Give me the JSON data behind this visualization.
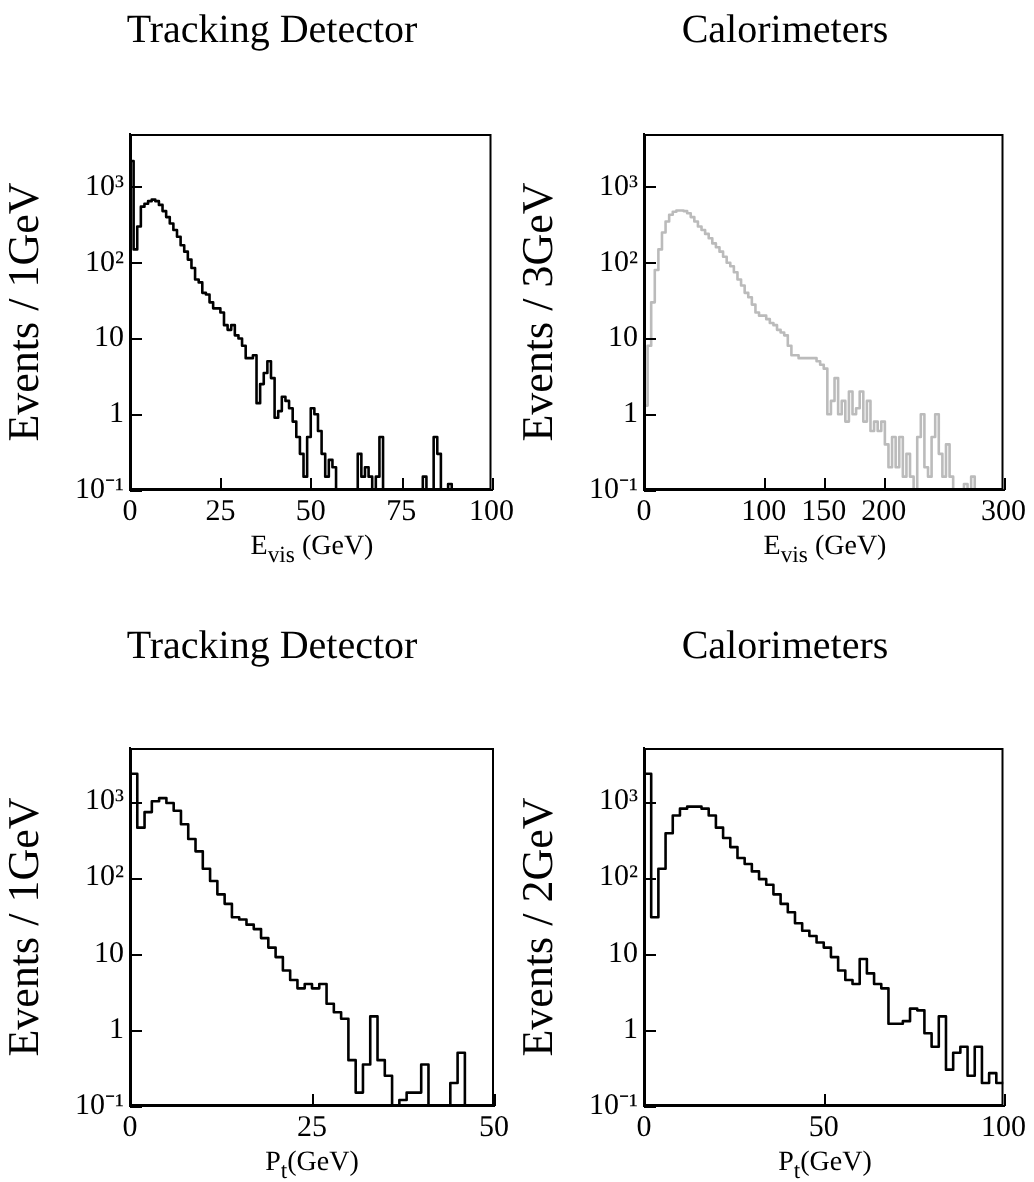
{
  "chart_data": [
    {
      "type": "histogram",
      "title": "Tracking Detector",
      "xlabel": "E$_{vis}$ (GeV)",
      "ylabel": "Events / 1GeV",
      "color": "#000000",
      "log": true,
      "xlim": [
        0,
        100
      ],
      "xticks": [
        0,
        25,
        50,
        75,
        100
      ],
      "ylim": [
        0.1,
        5000
      ],
      "yticks": [
        {
          "value": 0.1,
          "label": "10⁻¹"
        },
        {
          "value": 1,
          "label": "1"
        },
        {
          "value": 10,
          "label": "10"
        },
        {
          "value": 100,
          "label": "10²"
        },
        {
          "value": 1000,
          "label": "10³"
        }
      ],
      "bins": [
        0,
        1,
        2,
        3,
        4,
        5,
        6,
        7,
        8,
        9,
        10,
        11,
        12,
        13,
        14,
        15,
        16,
        17,
        18,
        19,
        20,
        21,
        22,
        23,
        24,
        25,
        26,
        27,
        28,
        29,
        30,
        31,
        32,
        33,
        34,
        35,
        36,
        37,
        38,
        39,
        40,
        41,
        42,
        43,
        44,
        45,
        46,
        47,
        48,
        49,
        50,
        51,
        52,
        53,
        54,
        55,
        56,
        57,
        58,
        59,
        60,
        61,
        62,
        63,
        64,
        65,
        66,
        67,
        68,
        69,
        70,
        71,
        72,
        73,
        74,
        75,
        76,
        77,
        78,
        79,
        80,
        81,
        82,
        83,
        84,
        85,
        86,
        87,
        88,
        89,
        90,
        91,
        92,
        93,
        94,
        95,
        96,
        97,
        98,
        99,
        100
      ],
      "values": [
        2200,
        150,
        300,
        550,
        600,
        650,
        680,
        650,
        580,
        480,
        400,
        330,
        270,
        220,
        170,
        140,
        110,
        85,
        60,
        55,
        40,
        38,
        30,
        25,
        25,
        22,
        15,
        13,
        15,
        11,
        10,
        8,
        5.5,
        5.5,
        6,
        1.4,
        2.5,
        3.5,
        5,
        3,
        0.9,
        1.1,
        1.7,
        1.5,
        1.2,
        0.8,
        0.5,
        0.3,
        0.15,
        0.5,
        1.2,
        1,
        0.6,
        0.3,
        0.15,
        0.25,
        0.2,
        null,
        null,
        null,
        null,
        null,
        null,
        0.3,
        0.15,
        0.2,
        0.15,
        null,
        0.15,
        0.5,
        null,
        null,
        null,
        null,
        null,
        null,
        null,
        null,
        null,
        null,
        null,
        0.15,
        null,
        null,
        0.5,
        0.3,
        null,
        null,
        0.12,
        null,
        null,
        null,
        null,
        null,
        null,
        null,
        null,
        null,
        null,
        null
      ]
    },
    {
      "type": "histogram",
      "title": "Calorimeters",
      "xlabel": "E$_{vis}$ (GeV)",
      "ylabel": "Events / 3GeV",
      "color": "#bbbbbb",
      "log": true,
      "xlim": [
        0,
        300
      ],
      "xticks": [
        0,
        100,
        150,
        200,
        300
      ],
      "ylim": [
        0.1,
        5000
      ],
      "yticks": [
        {
          "value": 0.1,
          "label": "10⁻¹"
        },
        {
          "value": 1,
          "label": "1"
        },
        {
          "value": 10,
          "label": "10"
        },
        {
          "value": 100,
          "label": "10²"
        },
        {
          "value": 1000,
          "label": "10³"
        }
      ],
      "bins": [
        0,
        3,
        6,
        9,
        12,
        15,
        18,
        21,
        24,
        27,
        30,
        33,
        36,
        39,
        42,
        45,
        48,
        51,
        54,
        57,
        60,
        63,
        66,
        69,
        72,
        75,
        78,
        81,
        84,
        87,
        90,
        93,
        96,
        99,
        102,
        105,
        108,
        111,
        114,
        117,
        120,
        123,
        126,
        129,
        132,
        135,
        138,
        141,
        144,
        147,
        150,
        153,
        156,
        159,
        162,
        165,
        168,
        171,
        174,
        177,
        180,
        183,
        186,
        189,
        192,
        195,
        198,
        201,
        204,
        207,
        210,
        213,
        216,
        219,
        222,
        225,
        228,
        231,
        234,
        237,
        240,
        243,
        246,
        249,
        252,
        255,
        258,
        261,
        264,
        267,
        270,
        273,
        276,
        279,
        282,
        285,
        288,
        291,
        294,
        297,
        300
      ],
      "values": [
        1.3,
        8,
        30,
        80,
        150,
        250,
        350,
        430,
        470,
        490,
        490,
        480,
        450,
        400,
        350,
        300,
        270,
        240,
        210,
        180,
        160,
        140,
        120,
        100,
        90,
        75,
        60,
        50,
        40,
        35,
        28,
        22,
        20,
        20,
        18,
        16,
        15,
        13,
        12,
        11,
        8,
        6,
        6,
        5.5,
        5.5,
        5.5,
        5.5,
        5.5,
        5,
        4.5,
        4,
        1,
        1.5,
        3,
        1,
        1.5,
        0.8,
        2,
        1,
        1.2,
        2,
        0.8,
        1.5,
        0.6,
        0.8,
        0.6,
        0.8,
        0.4,
        0.2,
        0.5,
        0.2,
        0.5,
        0.15,
        0.3,
        0.15,
        null,
        0.5,
        1,
        0.2,
        0.15,
        0.5,
        1,
        0.3,
        0.15,
        0.4,
        0.15,
        null,
        null,
        null,
        0.12,
        null,
        0.15,
        null,
        null,
        null,
        null,
        null,
        null,
        null,
        null
      ]
    },
    {
      "type": "histogram",
      "title": "Tracking Detector",
      "xlabel": "P$_{t}$(GeV)",
      "ylabel": "Events / 1GeV",
      "color": "#000000",
      "log": true,
      "xlim": [
        0,
        50
      ],
      "xticks": [
        0,
        25,
        50
      ],
      "ylim": [
        0.1,
        5000
      ],
      "yticks": [
        {
          "value": 0.1,
          "label": "10⁻¹"
        },
        {
          "value": 1,
          "label": "1"
        },
        {
          "value": 10,
          "label": "10"
        },
        {
          "value": 100,
          "label": "10²"
        },
        {
          "value": 1000,
          "label": "10³"
        }
      ],
      "bins": [
        0,
        1,
        2,
        3,
        4,
        5,
        6,
        7,
        8,
        9,
        10,
        11,
        12,
        13,
        14,
        15,
        16,
        17,
        18,
        19,
        20,
        21,
        22,
        23,
        24,
        25,
        26,
        27,
        28,
        29,
        30,
        31,
        32,
        33,
        34,
        35,
        36,
        37,
        38,
        39,
        40,
        41,
        42,
        43,
        44,
        45,
        46,
        47,
        48,
        49,
        50
      ],
      "values": [
        2300,
        450,
        720,
        1000,
        1100,
        950,
        750,
        500,
        320,
        220,
        130,
        90,
        60,
        45,
        30,
        28,
        24,
        21,
        16,
        12,
        9,
        6,
        4.5,
        3.5,
        4,
        3.5,
        4,
        2.2,
        1.7,
        1.4,
        0.4,
        0.15,
        0.35,
        1.5,
        0.4,
        0.25,
        null,
        0.12,
        0.15,
        0.15,
        0.35,
        null,
        null,
        null,
        0.2,
        0.5,
        null,
        null,
        null,
        null
      ]
    },
    {
      "type": "histogram",
      "title": "Calorimeters",
      "xlabel": "P$_{t}$(GeV)",
      "ylabel": "Events / 2GeV",
      "color": "#000000",
      "log": true,
      "xlim": [
        0,
        100
      ],
      "xticks": [
        0,
        50,
        100
      ],
      "ylim": [
        0.1,
        5000
      ],
      "yticks": [
        {
          "value": 0.1,
          "label": "10⁻¹"
        },
        {
          "value": 1,
          "label": "1"
        },
        {
          "value": 10,
          "label": "10"
        },
        {
          "value": 100,
          "label": "10²"
        },
        {
          "value": 1000,
          "label": "10³"
        }
      ],
      "bins": [
        0,
        2,
        4,
        6,
        8,
        10,
        12,
        14,
        16,
        18,
        20,
        22,
        24,
        26,
        28,
        30,
        32,
        34,
        36,
        38,
        40,
        42,
        44,
        46,
        48,
        50,
        52,
        54,
        56,
        58,
        60,
        62,
        64,
        66,
        68,
        70,
        72,
        74,
        76,
        78,
        80,
        82,
        84,
        86,
        88,
        90,
        92,
        94,
        96,
        98,
        100
      ],
      "values": [
        2300,
        30,
        130,
        380,
        650,
        800,
        850,
        850,
        800,
        650,
        450,
        330,
        250,
        180,
        150,
        120,
        95,
        80,
        60,
        45,
        35,
        25,
        20,
        17,
        14,
        12,
        9,
        6,
        4.5,
        4,
        8.5,
        5.5,
        4,
        3.5,
        1.2,
        1.2,
        1.3,
        1.9,
        1.8,
        0.9,
        0.6,
        1.5,
        0.3,
        0.5,
        0.6,
        0.25,
        0.6,
        0.2,
        0.27,
        0.2
      ]
    }
  ]
}
